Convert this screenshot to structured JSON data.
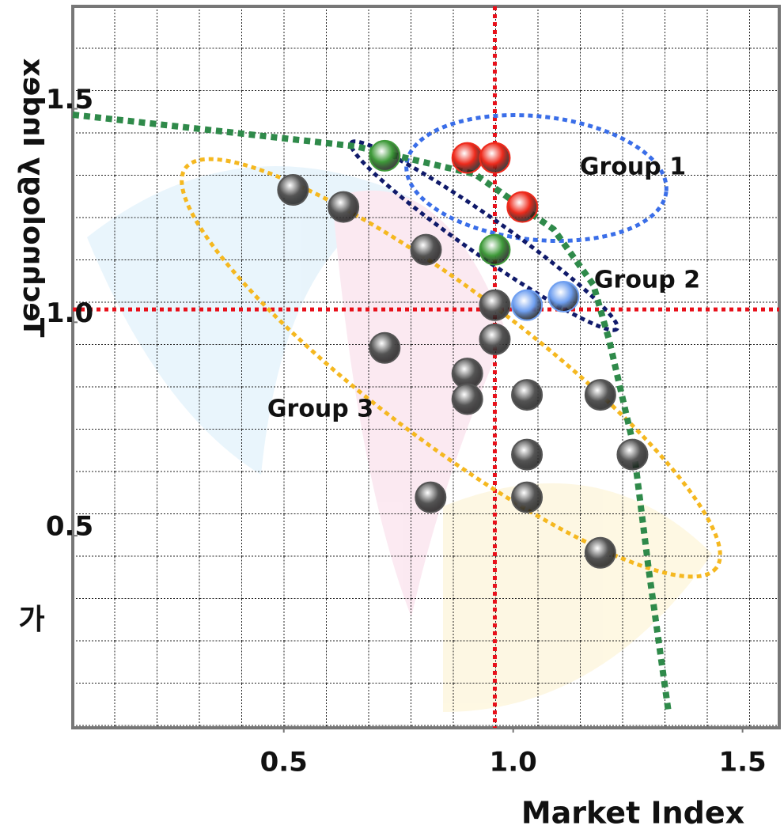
{
  "chart_data": {
    "type": "scatter",
    "x_label": "Market Index",
    "y_label": "Technology Index",
    "side_text": "가",
    "xlim": [
      0.04,
      1.58
    ],
    "ylim": [
      0.05,
      1.74
    ],
    "xticks": [
      0.5,
      {
        "value": 1,
        "label": "1.0"
      },
      1.5
    ],
    "yticks": [
      0.5,
      {
        "value": 1,
        "label": "1.0"
      },
      1.5
    ],
    "reference_x": 0.96,
    "reference_y": 1.03,
    "reference_color": "#e8101a",
    "annotations": [
      "Group 1",
      "Group 2",
      "Group 3"
    ],
    "series": [
      {
        "color": "#ee2a1c",
        "x": [
          0.9,
          0.96,
          1.02
        ],
        "values": [
          1.385,
          1.385,
          1.27
        ]
      },
      {
        "color": "#3f9a3a",
        "x": [
          0.72,
          0.96
        ],
        "values": [
          1.39,
          1.17
        ]
      },
      {
        "color": "#6f9ff0",
        "x": [
          1.03,
          1.11
        ],
        "values": [
          1.04,
          1.06
        ]
      },
      {
        "color": "#555555",
        "x": [
          0.52,
          0.63,
          0.81,
          0.96,
          0.72,
          0.96,
          0.9,
          0.9,
          1.03,
          1.19,
          1.03,
          1.26,
          0.82,
          1.03,
          1.19
        ],
        "values": [
          1.31,
          1.27,
          1.17,
          1.04,
          0.94,
          0.96,
          0.88,
          0.82,
          0.83,
          0.83,
          0.69,
          0.69,
          0.59,
          0.59,
          0.46
        ]
      }
    ]
  }
}
